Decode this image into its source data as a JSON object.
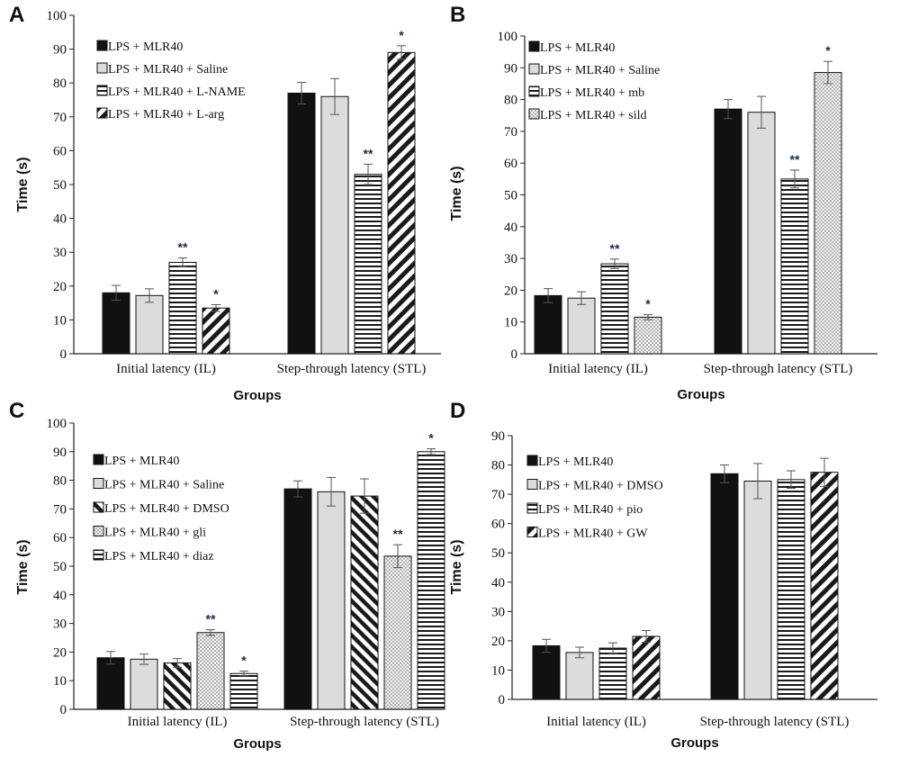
{
  "chart_data": [
    {
      "panel": "A",
      "type": "bar",
      "categories": [
        "Initial latency (IL)",
        "Step-through latency (STL)"
      ],
      "ylabel": "Time (s)",
      "xlabel": "Groups",
      "ylim": [
        0,
        100
      ],
      "yticks": [
        "0",
        "10",
        "20",
        "30",
        "40",
        "50",
        "60",
        "70",
        "80",
        "90",
        "100"
      ],
      "legend_position": "top-left",
      "series": [
        {
          "name": "LPS + MLR40",
          "pattern": "solid",
          "values": [
            18,
            77
          ],
          "errors": [
            2.2,
            3.2
          ],
          "sig": [
            "",
            ""
          ]
        },
        {
          "name": "LPS + MLR40 + Saline",
          "pattern": "light",
          "values": [
            17.2,
            76
          ],
          "errors": [
            2,
            5.3
          ],
          "sig": [
            "",
            ""
          ]
        },
        {
          "name": "LPS + MLR40 + L-NAME",
          "pattern": "hlines",
          "values": [
            27,
            53
          ],
          "errors": [
            1.3,
            3
          ],
          "sig": [
            "**",
            "**"
          ]
        },
        {
          "name": "LPS + MLR40 + L-arg",
          "pattern": "diag-thick",
          "values": [
            13.5,
            89
          ],
          "errors": [
            1,
            2
          ],
          "sig": [
            "*",
            "*"
          ]
        }
      ]
    },
    {
      "panel": "B",
      "type": "bar",
      "categories": [
        "Initial latency (IL)",
        "Step-through latency (STL)"
      ],
      "ylabel": "Time (s)",
      "xlabel": "Groups",
      "ylim": [
        0,
        100
      ],
      "yticks": [
        "0",
        "10",
        "20",
        "30",
        "40",
        "50",
        "60",
        "70",
        "80",
        "90",
        "100"
      ],
      "legend_position": "top-left",
      "series": [
        {
          "name": "LPS + MLR40",
          "pattern": "solid",
          "values": [
            18.3,
            77
          ],
          "errors": [
            2.2,
            3
          ],
          "sig": [
            "",
            ""
          ]
        },
        {
          "name": "LPS + MLR40 + Saline",
          "pattern": "light",
          "values": [
            17.5,
            76
          ],
          "errors": [
            2,
            5
          ],
          "sig": [
            "",
            ""
          ]
        },
        {
          "name": "LPS + MLR40 + mb",
          "pattern": "hlines",
          "values": [
            28.3,
            55
          ],
          "errors": [
            1.5,
            2.8
          ],
          "sig": [
            "**",
            "**"
          ]
        },
        {
          "name": "LPS + MLR40 + sild",
          "pattern": "dots",
          "values": [
            11.5,
            88.5
          ],
          "errors": [
            0.8,
            3.5
          ],
          "sig": [
            "*",
            "*"
          ]
        }
      ]
    },
    {
      "panel": "C",
      "type": "bar",
      "categories": [
        "Initial latency (IL)",
        "Step-through latency (STL)"
      ],
      "ylabel": "Time (s)",
      "xlabel": "Groups",
      "ylim": [
        0,
        100
      ],
      "yticks": [
        "0",
        "10",
        "20",
        "30",
        "40",
        "50",
        "60",
        "70",
        "80",
        "90",
        "100"
      ],
      "legend_position": "top-left",
      "series": [
        {
          "name": "LPS + MLR40",
          "pattern": "solid",
          "values": [
            18,
            77
          ],
          "errors": [
            2.2,
            2.8
          ],
          "sig": [
            "",
            ""
          ]
        },
        {
          "name": "LPS + MLR40 + Saline",
          "pattern": "light",
          "values": [
            17.5,
            76
          ],
          "errors": [
            1.8,
            5
          ],
          "sig": [
            "",
            ""
          ]
        },
        {
          "name": "LPS + MLR40 + DMSO",
          "pattern": "diag-back",
          "values": [
            16.2,
            74.5
          ],
          "errors": [
            1.5,
            6
          ],
          "sig": [
            "",
            ""
          ]
        },
        {
          "name": "LPS + MLR40 + gli",
          "pattern": "dots",
          "values": [
            26.8,
            53.5
          ],
          "errors": [
            1,
            4
          ],
          "sig": [
            "**",
            "**"
          ]
        },
        {
          "name": "LPS + MLR40 + diaz",
          "pattern": "hlines",
          "values": [
            12.5,
            90
          ],
          "errors": [
            0.8,
            1
          ],
          "sig": [
            "*",
            "*"
          ]
        }
      ]
    },
    {
      "panel": "D",
      "type": "bar",
      "categories": [
        "Initial latency (IL)",
        "Step-through latency (STL)"
      ],
      "ylabel": "Time (s)",
      "xlabel": "Groups",
      "ylim": [
        0,
        90
      ],
      "yticks": [
        "0",
        "10",
        "20",
        "30",
        "40",
        "50",
        "60",
        "70",
        "80",
        "90"
      ],
      "legend_position": "top-left",
      "series": [
        {
          "name": "LPS + MLR40",
          "pattern": "solid",
          "values": [
            18.3,
            77
          ],
          "errors": [
            2.2,
            3
          ],
          "sig": [
            "",
            ""
          ]
        },
        {
          "name": "LPS + MLR40 + DMSO",
          "pattern": "light",
          "values": [
            16,
            74.5
          ],
          "errors": [
            1.8,
            6
          ],
          "sig": [
            "",
            ""
          ]
        },
        {
          "name": "LPS + MLR40 + pio",
          "pattern": "hlines",
          "values": [
            17.5,
            75
          ],
          "errors": [
            1.8,
            3
          ],
          "sig": [
            "",
            ""
          ]
        },
        {
          "name": "LPS + MLR40 + GW",
          "pattern": "diag-thick",
          "values": [
            21.5,
            77.5
          ],
          "errors": [
            2,
            4.8
          ],
          "sig": [
            "",
            ""
          ]
        }
      ]
    }
  ]
}
